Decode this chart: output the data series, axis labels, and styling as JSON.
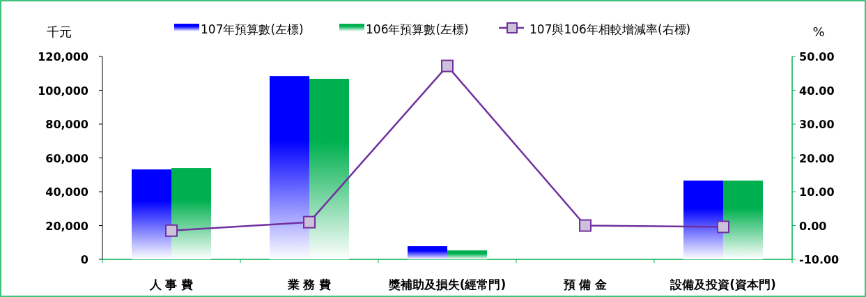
{
  "chart_data": {
    "type": "bar",
    "ylabel": "千元",
    "y2label": "%",
    "categories": [
      "人 事 費",
      "業 務 費",
      "獎補助及損失(經常門)",
      "預 備 金",
      "設備及投資(資本門)"
    ],
    "series": [
      {
        "name": "107年預算數(左標)",
        "color": "#0000ff",
        "values": [
          53200,
          108400,
          7800,
          0,
          46600
        ]
      },
      {
        "name": "106年預算數(左標)",
        "color": "#00b050",
        "values": [
          54000,
          106800,
          5300,
          0,
          46600
        ]
      },
      {
        "name": "107與106年相較增減率(右標)",
        "type": "line",
        "axis": "y2",
        "color": "#7030a0",
        "marker": "square",
        "values": [
          -1.5,
          1.0,
          47.2,
          0.0,
          -0.4
        ]
      }
    ],
    "ylim": [
      0,
      120000
    ],
    "yticks": [
      {
        "value": 0,
        "label": "0"
      },
      {
        "value": 20000,
        "label": "20,000"
      },
      {
        "value": 40000,
        "label": "40,000"
      },
      {
        "value": 60000,
        "label": "60,000"
      },
      {
        "value": 80000,
        "label": "80,000"
      },
      {
        "value": 100000,
        "label": "100,000"
      },
      {
        "value": 120000,
        "label": "120,000"
      }
    ],
    "y2lim": [
      -10,
      50
    ],
    "y2ticks": [
      {
        "value": -10,
        "label": "-10.00"
      },
      {
        "value": 0,
        "label": "0.00"
      },
      {
        "value": 10,
        "label": "10.00"
      },
      {
        "value": 20,
        "label": "20.00"
      },
      {
        "value": 30,
        "label": "30.00"
      },
      {
        "value": 40,
        "label": "40.00"
      },
      {
        "value": 50,
        "label": "50.00"
      }
    ],
    "grid": false,
    "legend": "top"
  }
}
